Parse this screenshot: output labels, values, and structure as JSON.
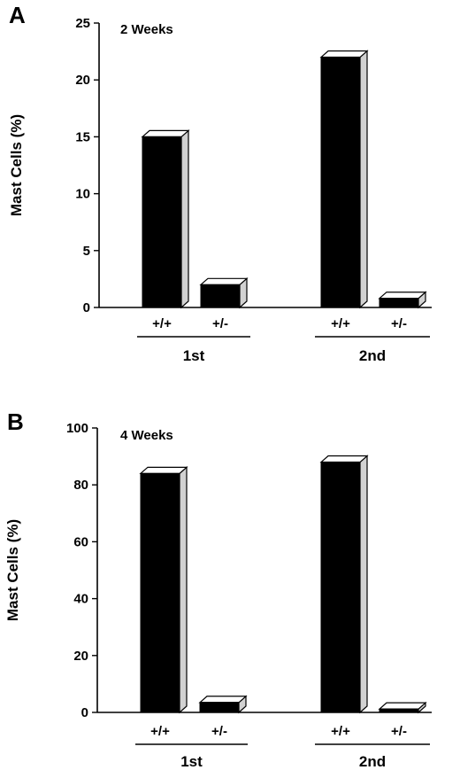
{
  "chart_data": [
    {
      "type": "bar",
      "panel_label": "A",
      "title": "2 Weeks",
      "xlabel": "",
      "ylabel": "Mast Cells (%)",
      "ylim": [
        0,
        25
      ],
      "yticks": [
        0,
        5,
        10,
        15,
        20,
        25
      ],
      "grid": false,
      "groups": [
        {
          "name": "1st",
          "bars": [
            {
              "label": "+/+",
              "value": 15
            },
            {
              "label": "+/-",
              "value": 2
            }
          ]
        },
        {
          "name": "2nd",
          "bars": [
            {
              "label": "+/+",
              "value": 22
            },
            {
              "label": "+/-",
              "value": 0.8
            }
          ]
        }
      ]
    },
    {
      "type": "bar",
      "panel_label": "B",
      "title": "4 Weeks",
      "xlabel": "",
      "ylabel": "Mast Cells (%)",
      "ylim": [
        0,
        100
      ],
      "yticks": [
        0,
        20,
        40,
        60,
        80,
        100
      ],
      "grid": false,
      "groups": [
        {
          "name": "1st",
          "bars": [
            {
              "label": "+/+",
              "value": 84
            },
            {
              "label": "+/-",
              "value": 3.5
            }
          ]
        },
        {
          "name": "2nd",
          "bars": [
            {
              "label": "+/+",
              "value": 88
            },
            {
              "label": "+/-",
              "value": 1.2
            }
          ]
        }
      ]
    }
  ]
}
